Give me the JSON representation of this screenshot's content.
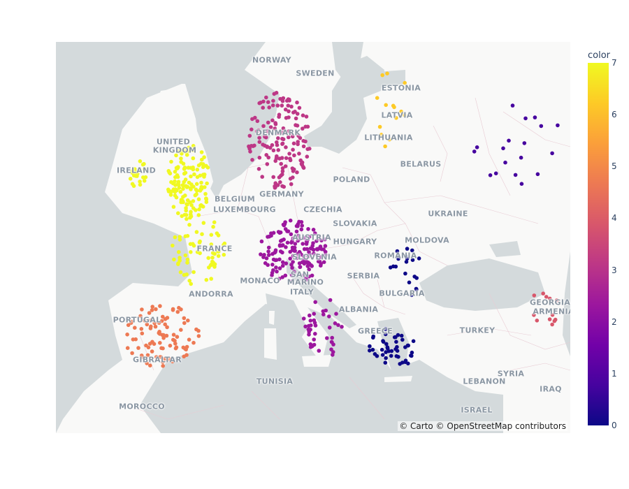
{
  "attribution": "© Carto © OpenStreetMap contributors",
  "colorbar": {
    "title": "color",
    "ticks": [
      "0",
      "1",
      "2",
      "3",
      "4",
      "5",
      "6",
      "7"
    ],
    "range": [
      0,
      7
    ],
    "colorscale": [
      "#0d0887",
      "#46039f",
      "#7201a8",
      "#9c179e",
      "#bd3786",
      "#d8576b",
      "#ed7953",
      "#fb9f3a",
      "#fdca26",
      "#f0f921"
    ]
  },
  "map_labels": [
    {
      "id": "norway",
      "text": "NORWAY"
    },
    {
      "id": "sweden",
      "text": "SWEDEN"
    },
    {
      "id": "estonia",
      "text": "ESTONIA"
    },
    {
      "id": "latvia",
      "text": "LATVIA"
    },
    {
      "id": "lithuania",
      "text": "LITHUANIA"
    },
    {
      "id": "denmark",
      "text": "DENMARK"
    },
    {
      "id": "united",
      "text": "UNITED"
    },
    {
      "id": "kingdom",
      "text": "KINGDOM"
    },
    {
      "id": "ireland",
      "text": "IRELAND"
    },
    {
      "id": "belarus",
      "text": "BELARUS"
    },
    {
      "id": "poland",
      "text": "POLAND"
    },
    {
      "id": "germany",
      "text": "GERMANY"
    },
    {
      "id": "belgium",
      "text": "BELGIUM"
    },
    {
      "id": "luxembourg",
      "text": "LUXEMBOURG"
    },
    {
      "id": "czechia",
      "text": "CZECHIA"
    },
    {
      "id": "slovakia",
      "text": "SLOVAKIA"
    },
    {
      "id": "ukraine",
      "text": "UKRAINE"
    },
    {
      "id": "moldova",
      "text": "MOLDOVA"
    },
    {
      "id": "austria",
      "text": "AUSTRIA"
    },
    {
      "id": "hungary",
      "text": "HUNGARY"
    },
    {
      "id": "france",
      "text": "FRANCE"
    },
    {
      "id": "slovenia",
      "text": "SLOVENIA"
    },
    {
      "id": "romania",
      "text": "ROMANIA"
    },
    {
      "id": "serbia",
      "text": "SERBIA"
    },
    {
      "id": "monaco",
      "text": "MONACO"
    },
    {
      "id": "san",
      "text": "SAN"
    },
    {
      "id": "marino",
      "text": "MARINO"
    },
    {
      "id": "bulgaria",
      "text": "BULGARIA"
    },
    {
      "id": "andorra",
      "text": "ANDORRA"
    },
    {
      "id": "italy",
      "text": "ITALY"
    },
    {
      "id": "albania",
      "text": "ALBANIA"
    },
    {
      "id": "greece",
      "text": "GREECE"
    },
    {
      "id": "portugal",
      "text": "PORTUGAL"
    },
    {
      "id": "turkey",
      "text": "TURKEY"
    },
    {
      "id": "georgia",
      "text": "GEORGIA"
    },
    {
      "id": "armenia",
      "text": "ARMENIA"
    },
    {
      "id": "gibraltar",
      "text": "GIBRALTAR"
    },
    {
      "id": "tunisia",
      "text": "TUNISIA"
    },
    {
      "id": "syria",
      "text": "SYRIA"
    },
    {
      "id": "lebanon",
      "text": "LEBANON"
    },
    {
      "id": "iraq",
      "text": "IRAQ"
    },
    {
      "id": "morocco",
      "text": "MOROCCO"
    },
    {
      "id": "israel",
      "text": "ISRAEL"
    }
  ],
  "marker_clusters": [
    {
      "region": "United Kingdom",
      "value": 7
    },
    {
      "region": "Ireland",
      "value": 7
    },
    {
      "region": "Northern and western France",
      "value": 7
    },
    {
      "region": "Spain and Portugal",
      "value": 5
    },
    {
      "region": "Norway, Denmark, Netherlands, northern Germany",
      "value": 3
    },
    {
      "region": "Southern Germany, Austria, northern Italy",
      "value": 2
    },
    {
      "region": "Italy and Adriatic",
      "value": 2
    },
    {
      "region": "Greece and Aegean",
      "value": 0
    },
    {
      "region": "Romania and Bulgaria",
      "value": 0
    },
    {
      "region": "Western Russia",
      "value": 1
    },
    {
      "region": "Baltics and Finland",
      "value": 6
    },
    {
      "region": "Caucasus and eastern Turkey",
      "value": 4
    }
  ]
}
